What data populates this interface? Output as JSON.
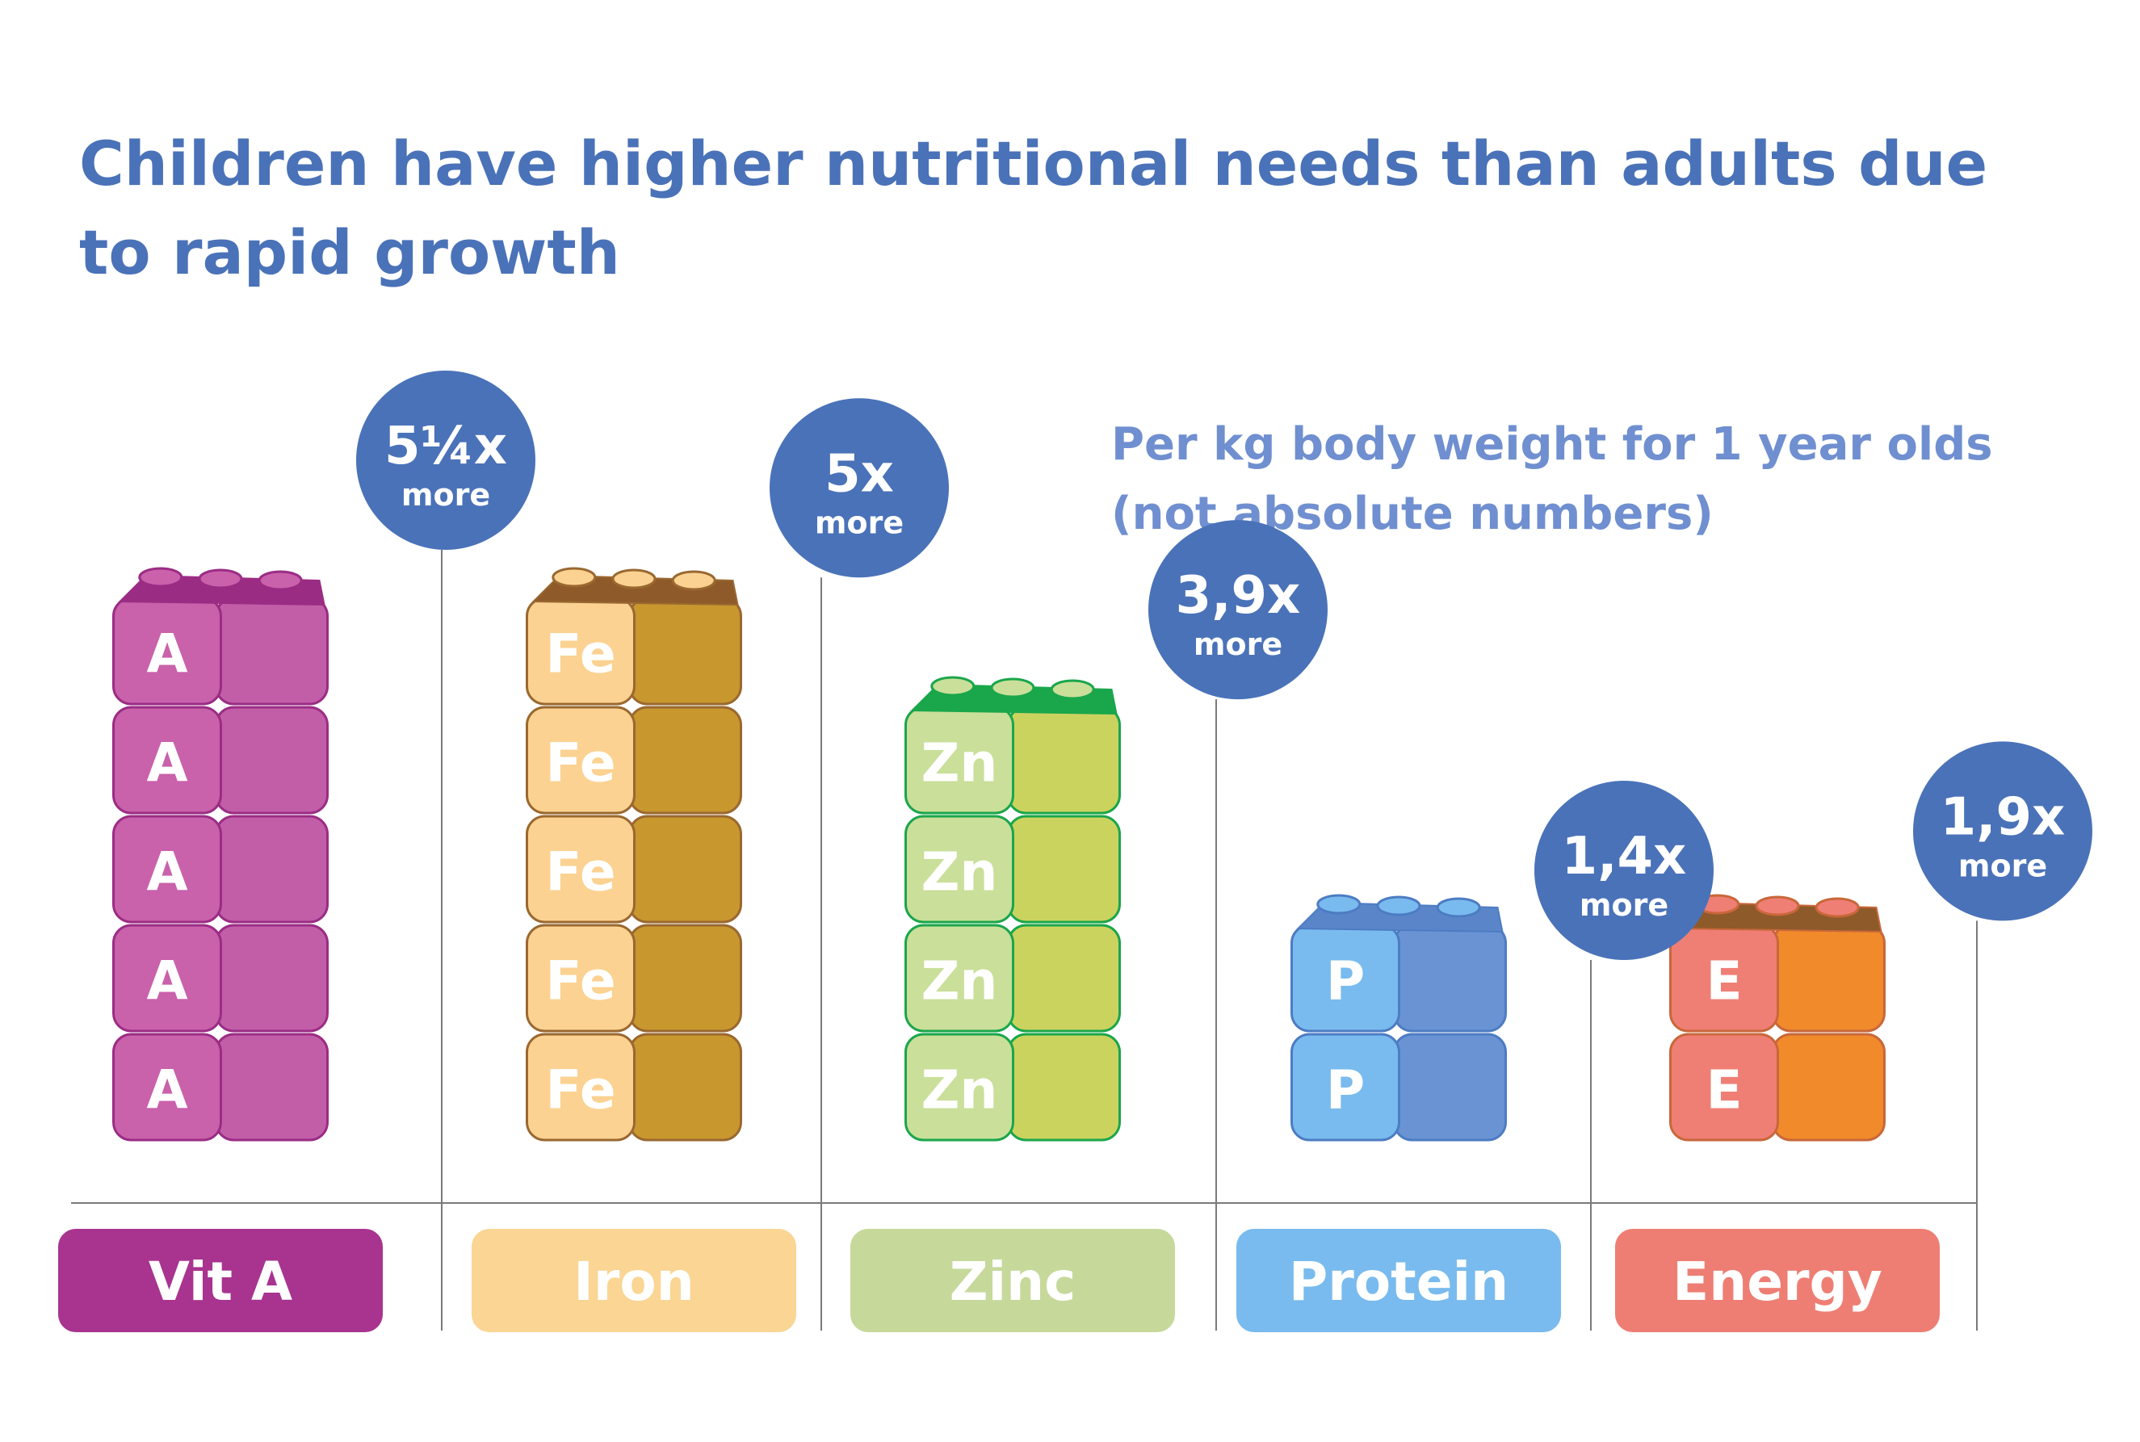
{
  "title": "Children have higher nutritional needs than adults due to rapid growth",
  "subtitle_line1": "Per kg body weight for 1 year olds",
  "subtitle_line2": "(not absolute numbers)",
  "chart_data": {
    "type": "bar",
    "title": "Children have higher nutritional needs than adults due to rapid growth",
    "subtitle": "Per kg body weight for 1 year olds (not absolute numbers)",
    "categories": [
      "Vit A",
      "Iron",
      "Zinc",
      "Protein",
      "Energy"
    ],
    "values": [
      5.25,
      5,
      3.9,
      1.4,
      1.9
    ],
    "value_labels": [
      "5¼x",
      "5x",
      "3,9x",
      "1,4x",
      "1,9x"
    ],
    "value_unit_label": "more",
    "brick_symbols": [
      "A",
      "Fe",
      "Zn",
      "P",
      "E"
    ],
    "brick_counts": [
      5,
      5,
      4,
      2,
      2
    ],
    "colors": {
      "Vit A": "#a8348f",
      "Iron": "#fad594",
      "Zinc": "#c6d99b",
      "Protein": "#79bbee",
      "Energy": "#ee7e73",
      "bubble": "#4a72b8",
      "title": "#4a72b8",
      "subtitle": "#6f8fd0"
    },
    "grid": false,
    "legend": "none"
  }
}
